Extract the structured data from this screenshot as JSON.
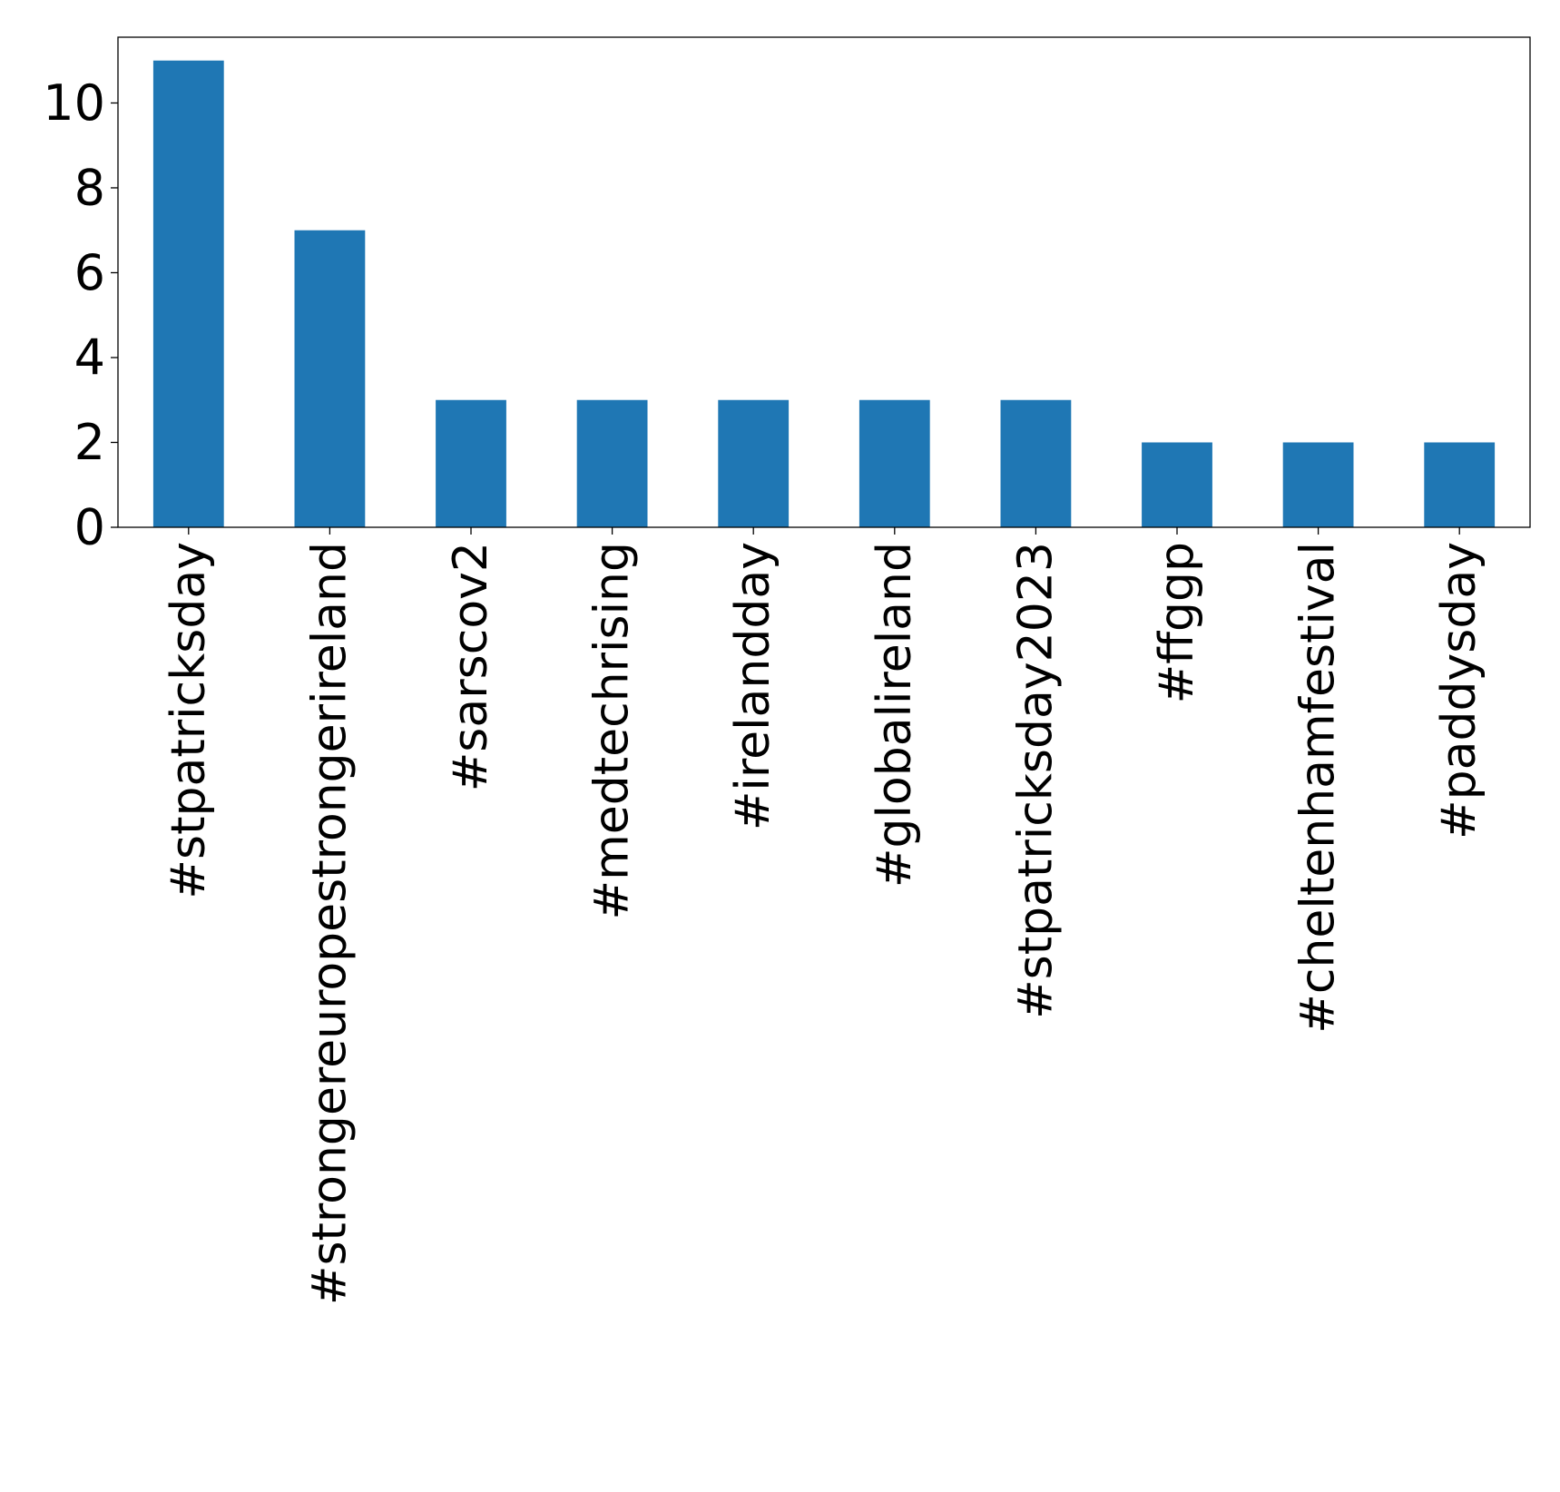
{
  "chart_data": {
    "type": "bar",
    "title": "",
    "xlabel": "",
    "ylabel": "",
    "categories": [
      "#stpatricksday",
      "#strongereuropestrongerireland",
      "#sarscov2",
      "#medtechrising",
      "#irelandday",
      "#globalireland",
      "#stpatricksday2023",
      "#ffggp",
      "#cheltenhamfestival",
      "#paddysday"
    ],
    "values": [
      11,
      7,
      3,
      3,
      3,
      3,
      3,
      2,
      2,
      2
    ],
    "ylim": [
      0,
      11.55
    ],
    "yticks": [
      0,
      2,
      4,
      6,
      8,
      10
    ],
    "grid": false,
    "legend": "none",
    "bar_color": "#1f77b4"
  }
}
